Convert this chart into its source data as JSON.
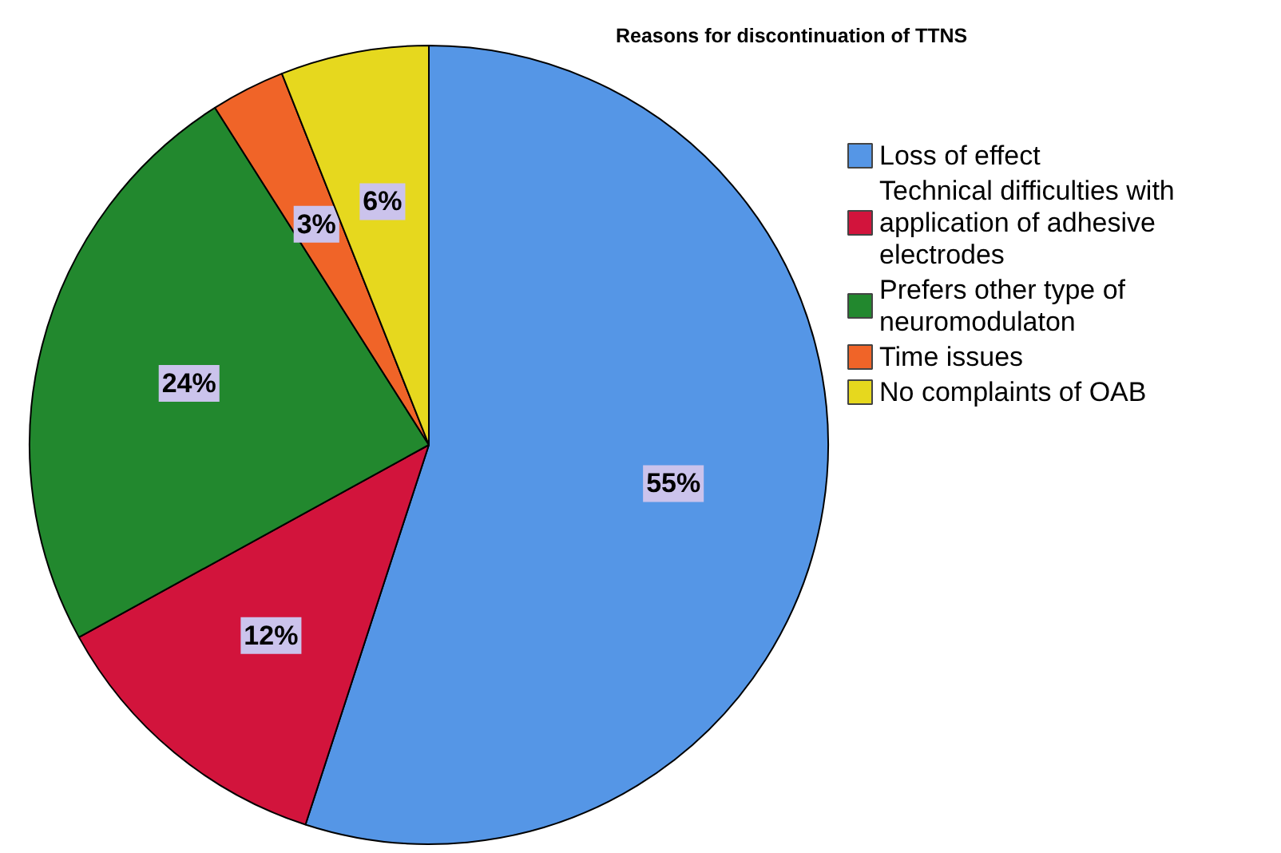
{
  "chart_data": {
    "type": "pie",
    "legend_title": "Reasons for discontinuation of TTNS",
    "categories": [
      "Loss of effect",
      "Technical difficulties with application of adhesive electrodes",
      "Prefers other type of neuromodulaton",
      "Time issues",
      "No complaints of OAB"
    ],
    "values": [
      55,
      12,
      24,
      3,
      6
    ],
    "colors": [
      "#5596e6",
      "#d2143c",
      "#22882e",
      "#f06428",
      "#e6d81e"
    ],
    "value_labels": [
      "55%",
      "12%",
      "24%",
      "3%",
      "6%"
    ],
    "legend": "right"
  }
}
